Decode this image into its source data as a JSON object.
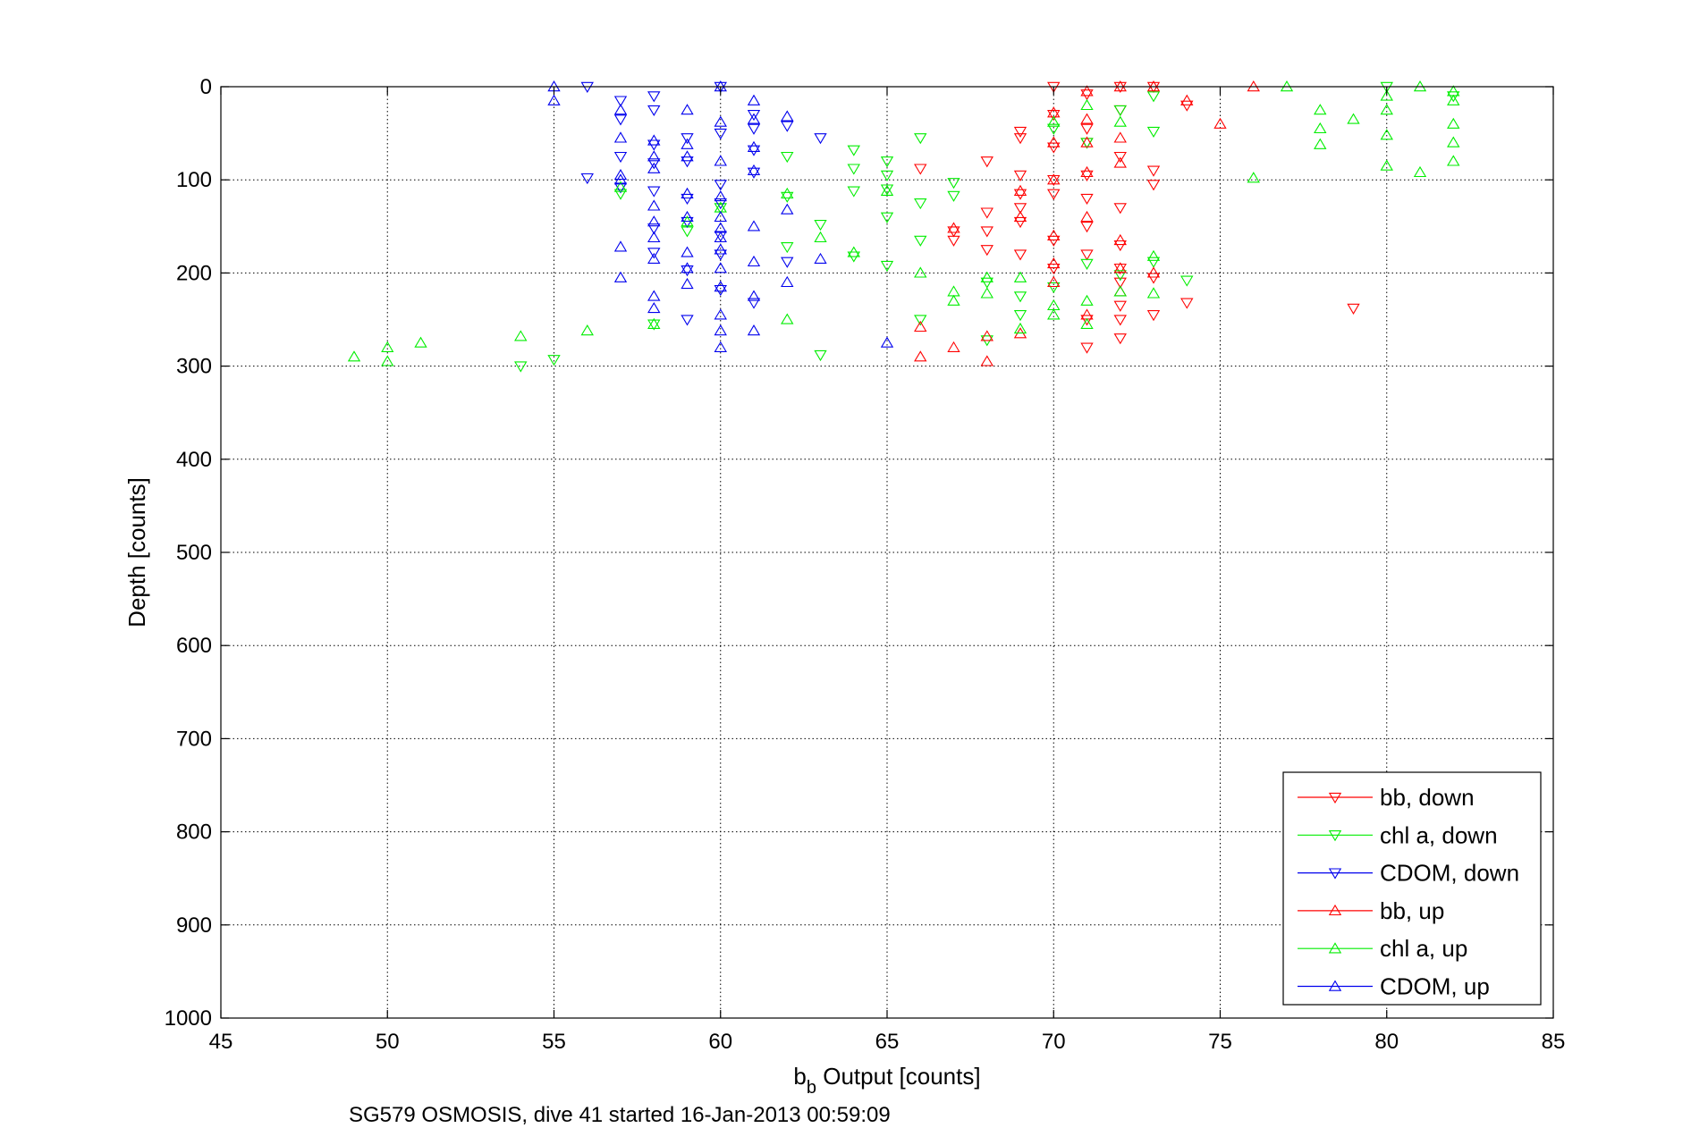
{
  "chart_data": {
    "type": "scatter",
    "title": "",
    "xlabel": {
      "main": "b",
      "sub": "b",
      "rest": " Output [counts]"
    },
    "ylabel": "Depth [counts]",
    "caption": "SG579 OSMOSIS, dive 41 started 16-Jan-2013 00:59:09",
    "xlim": [
      45,
      85
    ],
    "ylim": [
      0,
      1000
    ],
    "y_reversed": true,
    "grid": true,
    "legend_position": "bottom-right",
    "x_ticks": [
      "45",
      "50",
      "55",
      "60",
      "65",
      "70",
      "75",
      "80",
      "85"
    ],
    "y_ticks": [
      "0",
      "100",
      "200",
      "300",
      "400",
      "500",
      "600",
      "700",
      "800",
      "900",
      "1000"
    ],
    "series": [
      {
        "name": "bb, down",
        "color": "#ff0000",
        "marker": "triangle-down",
        "x": [
          66,
          67,
          67,
          68,
          68,
          68,
          68,
          69,
          69,
          69,
          69,
          69,
          69,
          69,
          70,
          70,
          70,
          70,
          70,
          70,
          70,
          71,
          71,
          71,
          71,
          71,
          71,
          71,
          71,
          71,
          72,
          72,
          72,
          72,
          72,
          72,
          72,
          72,
          72,
          72,
          73,
          73,
          73,
          73,
          73,
          74,
          74,
          79
        ],
        "y": [
          88,
          155,
          165,
          80,
          135,
          155,
          175,
          48,
          55,
          95,
          115,
          130,
          145,
          180,
          0,
          30,
          65,
          100,
          115,
          165,
          195,
          8,
          45,
          60,
          95,
          120,
          150,
          180,
          250,
          280,
          0,
          25,
          75,
          130,
          170,
          195,
          210,
          235,
          250,
          270,
          0,
          90,
          105,
          205,
          245,
          20,
          232,
          238
        ]
      },
      {
        "name": "chl a, down",
        "color": "#00ee00",
        "marker": "triangle-down",
        "x": [
          54,
          55,
          57,
          58,
          59,
          60,
          62,
          62,
          62,
          63,
          63,
          64,
          64,
          64,
          64,
          65,
          65,
          65,
          65,
          65,
          66,
          66,
          66,
          66,
          67,
          67,
          68,
          68,
          69,
          69,
          70,
          70,
          71,
          71,
          72,
          72,
          73,
          73,
          73,
          74,
          80,
          82
        ],
        "y": [
          300,
          293,
          115,
          255,
          155,
          130,
          75,
          118,
          172,
          148,
          288,
          68,
          88,
          112,
          182,
          80,
          95,
          110,
          140,
          192,
          55,
          125,
          165,
          250,
          103,
          117,
          210,
          272,
          225,
          245,
          45,
          215,
          60,
          190,
          25,
          202,
          10,
          48,
          188,
          208,
          0,
          10
        ]
      },
      {
        "name": "CDOM, down",
        "color": "#0000ee",
        "marker": "triangle-down",
        "x": [
          56,
          56,
          57,
          57,
          57,
          57,
          58,
          58,
          58,
          58,
          58,
          58,
          58,
          59,
          59,
          59,
          59,
          59,
          59,
          60,
          60,
          60,
          60,
          60,
          60,
          60,
          61,
          61,
          61,
          61,
          61,
          62,
          62,
          63
        ],
        "y": [
          0,
          98,
          15,
          35,
          75,
          108,
          10,
          25,
          62,
          82,
          112,
          152,
          178,
          55,
          80,
          120,
          145,
          197,
          250,
          0,
          50,
          105,
          125,
          160,
          180,
          218,
          30,
          45,
          68,
          92,
          232,
          42,
          188,
          55
        ]
      },
      {
        "name": "bb, up",
        "color": "#ff0000",
        "marker": "triangle-up",
        "x": [
          66,
          66,
          67,
          67,
          68,
          68,
          69,
          69,
          69,
          70,
          70,
          70,
          70,
          70,
          70,
          71,
          71,
          71,
          71,
          71,
          71,
          72,
          72,
          72,
          72,
          72,
          72,
          73,
          73,
          74,
          75,
          76
        ],
        "y": [
          258,
          290,
          152,
          280,
          268,
          295,
          112,
          140,
          265,
          28,
          60,
          100,
          160,
          190,
          210,
          5,
          35,
          60,
          92,
          140,
          245,
          0,
          55,
          82,
          165,
          195,
          220,
          0,
          200,
          15,
          40,
          0
        ]
      },
      {
        "name": "chl a, up",
        "color": "#00ee00",
        "marker": "triangle-up",
        "x": [
          49,
          50,
          50,
          51,
          54,
          56,
          57,
          58,
          59,
          60,
          62,
          62,
          63,
          64,
          65,
          66,
          67,
          67,
          68,
          68,
          69,
          69,
          70,
          70,
          70,
          71,
          71,
          71,
          72,
          72,
          73,
          73,
          76,
          77,
          78,
          78,
          78,
          79,
          80,
          80,
          80,
          80,
          81,
          81,
          82,
          82,
          82,
          82,
          82
        ],
        "y": [
          290,
          280,
          295,
          275,
          268,
          262,
          108,
          255,
          145,
          130,
          115,
          250,
          162,
          178,
          112,
          200,
          220,
          230,
          205,
          222,
          205,
          260,
          38,
          235,
          245,
          20,
          230,
          255,
          38,
          220,
          182,
          222,
          98,
          0,
          25,
          45,
          62,
          35,
          10,
          25,
          52,
          85,
          0,
          92,
          5,
          15,
          40,
          60,
          80
        ]
      },
      {
        "name": "CDOM, up",
        "color": "#0000ee",
        "marker": "triangle-up",
        "x": [
          55,
          55,
          57,
          57,
          57,
          57,
          57,
          57,
          58,
          58,
          58,
          58,
          58,
          58,
          58,
          58,
          58,
          59,
          59,
          59,
          59,
          59,
          59,
          59,
          59,
          60,
          60,
          60,
          60,
          60,
          60,
          60,
          60,
          60,
          60,
          60,
          60,
          60,
          61,
          61,
          61,
          61,
          61,
          61,
          61,
          61,
          62,
          62,
          62,
          63,
          65
        ],
        "y": [
          0,
          15,
          25,
          55,
          95,
          172,
          100,
          205,
          58,
          75,
          88,
          128,
          145,
          162,
          185,
          225,
          238,
          25,
          62,
          75,
          115,
          140,
          178,
          195,
          212,
          0,
          38,
          80,
          118,
          140,
          152,
          162,
          175,
          195,
          215,
          245,
          262,
          280,
          15,
          35,
          65,
          90,
          150,
          188,
          225,
          262,
          32,
          132,
          210,
          185,
          275
        ]
      }
    ]
  }
}
